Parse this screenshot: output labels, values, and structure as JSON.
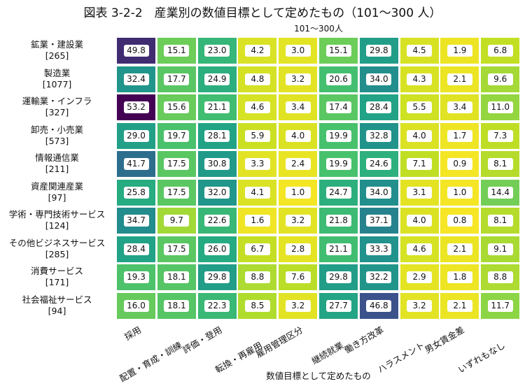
{
  "chart_data": {
    "type": "heatmap",
    "title": "図表 3-2-2　産業別の数値目標として定めたもの（101～300 人）",
    "subtitle": "101～300人",
    "xlabel": "数値目標として定めたもの",
    "ylabel": "",
    "colormap": "viridis",
    "color_range": [
      0,
      53.2
    ],
    "columns": [
      "採用",
      "配置・育成・訓練",
      "評価・登用",
      "転換・再雇用",
      "雇用管理区分",
      "継続就業",
      "働き方改革",
      "ハラスメント",
      "男女賃金差",
      "いずれもなし"
    ],
    "rows": [
      {
        "name": "鉱業・建設業",
        "n": "[265]",
        "values": [
          49.8,
          15.1,
          23.0,
          4.2,
          3.0,
          15.1,
          29.8,
          4.5,
          1.9,
          6.8
        ]
      },
      {
        "name": "製造業",
        "n": "[1077]",
        "values": [
          32.4,
          17.7,
          24.9,
          4.8,
          3.2,
          20.6,
          34.0,
          4.3,
          2.1,
          9.6
        ]
      },
      {
        "name": "運輸業・インフラ",
        "n": "[327]",
        "values": [
          53.2,
          15.6,
          21.1,
          4.6,
          3.4,
          17.4,
          28.4,
          5.5,
          3.4,
          11.0
        ]
      },
      {
        "name": "卸売・小売業",
        "n": "[573]",
        "values": [
          29.0,
          19.7,
          28.1,
          5.9,
          4.0,
          19.9,
          32.8,
          4.0,
          1.7,
          7.3
        ]
      },
      {
        "name": "情報通信業",
        "n": "[211]",
        "values": [
          41.7,
          17.5,
          30.8,
          3.3,
          2.4,
          19.9,
          24.6,
          7.1,
          0.9,
          8.1
        ]
      },
      {
        "name": "資産関連産業",
        "n": "[97]",
        "values": [
          25.8,
          17.5,
          32.0,
          4.1,
          1.0,
          24.7,
          34.0,
          3.1,
          1.0,
          14.4
        ]
      },
      {
        "name": "学術・専門技術サービス",
        "n": "[124]",
        "values": [
          34.7,
          9.7,
          22.6,
          1.6,
          3.2,
          21.8,
          37.1,
          4.0,
          0.8,
          8.1
        ]
      },
      {
        "name": "その他ビジネスサービス",
        "n": "[285]",
        "values": [
          28.4,
          17.5,
          26.0,
          6.7,
          2.8,
          21.1,
          33.3,
          4.6,
          2.1,
          9.1
        ]
      },
      {
        "name": "消費サービス",
        "n": "[171]",
        "values": [
          19.3,
          18.1,
          29.8,
          8.8,
          7.6,
          29.8,
          32.2,
          2.9,
          1.8,
          8.8
        ]
      },
      {
        "name": "社会福祉サービス",
        "n": "[94]",
        "values": [
          16.0,
          18.1,
          22.3,
          8.5,
          3.2,
          27.7,
          46.8,
          3.2,
          2.1,
          11.7
        ]
      }
    ]
  }
}
